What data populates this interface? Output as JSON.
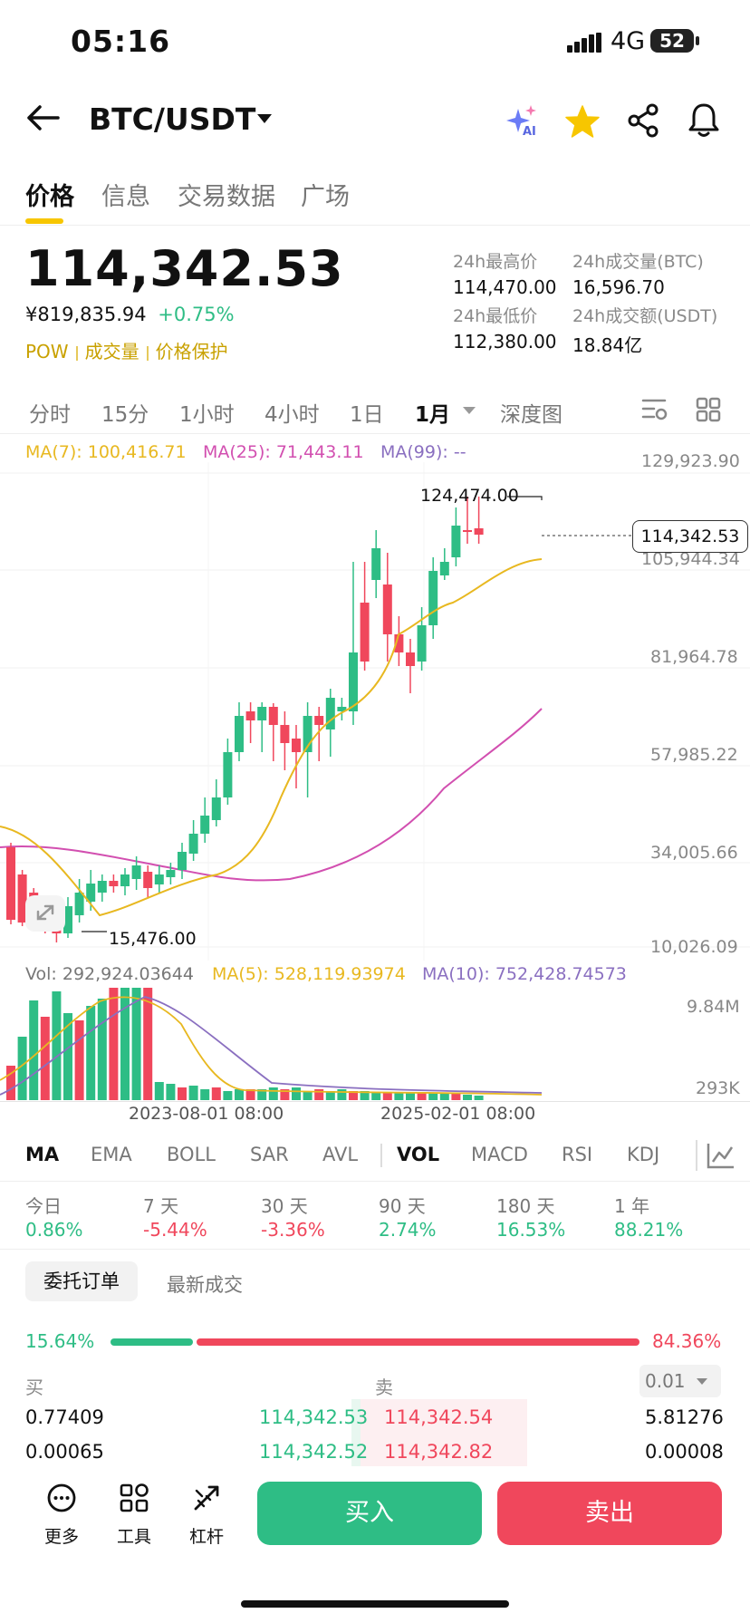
{
  "status_bar": {
    "time": "05:16",
    "network": "4G",
    "battery": "52"
  },
  "header": {
    "pair": "BTC/USDT",
    "ai_label": "AI"
  },
  "tabs": [
    "价格",
    "信息",
    "交易数据",
    "广场"
  ],
  "ticker": {
    "last_price": "114,342.53",
    "cny_price": "¥819,835.94",
    "change": "+0.75%",
    "tags": [
      "POW",
      "成交量",
      "价格保护"
    ],
    "high_label": "24h最高价",
    "high": "114,470.00",
    "vol_btc_label": "24h成交量(BTC)",
    "vol_btc": "16,596.70",
    "low_label": "24h最低价",
    "low": "112,380.00",
    "vol_usdt_label": "24h成交额(USDT)",
    "vol_usdt": "18.84亿"
  },
  "intervals": [
    "分时",
    "15分",
    "1小时",
    "4小时",
    "1日",
    "1月",
    "深度图"
  ],
  "chart": {
    "ma7": "MA(7): 100,416.71",
    "ma25": "MA(25): 71,443.11",
    "ma99": "MA(99): --",
    "y_labels": [
      "129,923.90",
      "105,944.34",
      "81,964.78",
      "57,985.22",
      "34,005.66",
      "10,026.09"
    ],
    "current_price_tag": "114,342.53",
    "high_marker": "124,474.00",
    "low_marker": "15,476.00",
    "vol": "Vol: 292,924.03644",
    "vol_ma5": "MA(5): 528,119.93974",
    "vol_ma10": "MA(10): 752,428.74573",
    "vol_y_labels": [
      "9.84M",
      "293K"
    ],
    "x_labels": [
      "2023-08-01 08:00",
      "2025-02-01 08:00"
    ],
    "colors": {
      "up": "#2ebd85",
      "down": "#f0475c",
      "ma7": "#e8b820",
      "ma25": "#d24fb0",
      "ma99": "#8a6fc0"
    }
  },
  "indicators": [
    "MA",
    "EMA",
    "BOLL",
    "SAR",
    "AVL",
    "VOL",
    "MACD",
    "RSI",
    "KDJ"
  ],
  "performance": [
    {
      "label": "今日",
      "value": "0.86%"
    },
    {
      "label": "7 天",
      "value": "-5.44%"
    },
    {
      "label": "30 天",
      "value": "-3.36%"
    },
    {
      "label": "90 天",
      "value": "2.74%"
    },
    {
      "label": "180 天",
      "value": "16.53%"
    },
    {
      "label": "1 年",
      "value": "88.21%"
    }
  ],
  "order_book": {
    "tab_active": "委托订单",
    "tab_other": "最新成交",
    "buy_ratio": "15.64%",
    "sell_ratio": "84.36%",
    "buy_fraction": 0.1564,
    "buy_label": "买",
    "sell_label": "卖",
    "precision": "0.01",
    "rows": [
      {
        "bid_qty": "0.77409",
        "bid_price": "114,342.53",
        "ask_price": "114,342.54",
        "ask_qty": "5.81276"
      },
      {
        "bid_qty": "0.00065",
        "bid_price": "114,342.52",
        "ask_price": "114,342.82",
        "ask_qty": "0.00008"
      }
    ]
  },
  "bottom_bar": {
    "more": "更多",
    "tools": "工具",
    "leverage": "杠杆",
    "buy": "买入",
    "sell": "卖出"
  }
}
